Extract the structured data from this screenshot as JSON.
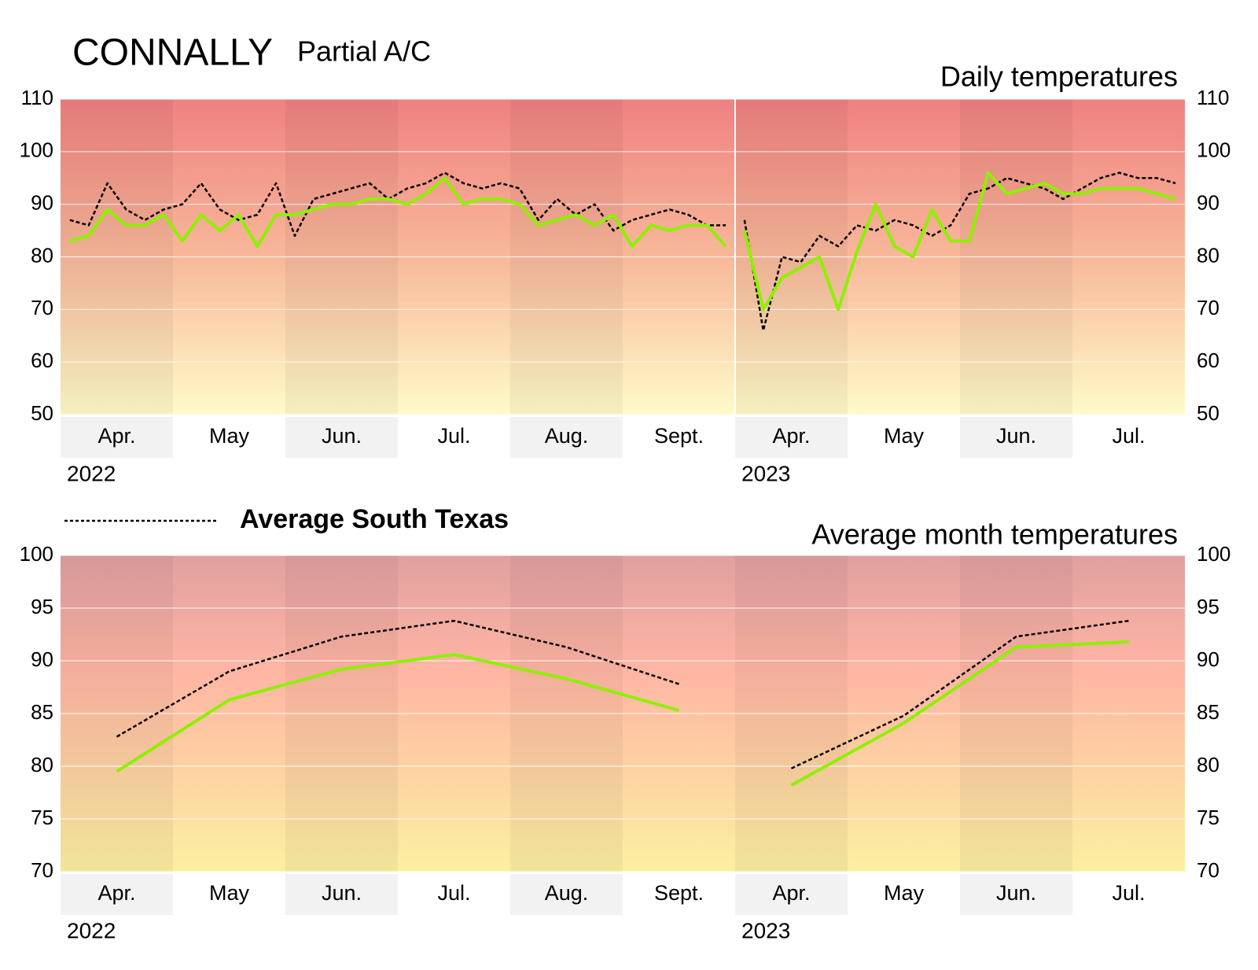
{
  "chart_data": [
    {
      "type": "line",
      "title": "CONNALLY",
      "subtitle": "Partial A/C",
      "heading": "Daily temperatures",
      "ylim": [
        50,
        110
      ],
      "yticks": [
        50,
        60,
        70,
        80,
        90,
        100,
        110
      ],
      "ytick_colors": [
        "#555555",
        "#555555",
        "#555555",
        "#555555",
        "#d0202a",
        "#d0202a",
        "#d0202a"
      ],
      "grid": true,
      "segments": [
        {
          "label": "2022",
          "categories": [
            "Apr.",
            "May",
            "Jun.",
            "Jul.",
            "Aug.",
            "Sept."
          ]
        },
        {
          "label": "2023",
          "categories": [
            "Apr.",
            "May",
            "Jun.",
            "Jul."
          ]
        }
      ],
      "series": [
        {
          "name": "Average South Texas",
          "color": "#000000",
          "dashed": true,
          "values": [
            [
              87,
              86,
              94,
              89,
              87,
              89,
              90,
              94,
              89,
              87,
              88,
              94,
              84,
              91,
              92,
              93,
              94,
              91,
              93,
              94,
              96,
              94,
              93,
              94,
              93,
              87,
              91,
              88,
              90,
              85,
              87,
              88,
              89,
              88,
              86,
              86
            ],
            [
              87,
              66,
              80,
              79,
              84,
              82,
              86,
              85,
              87,
              86,
              84,
              86,
              92,
              93,
              95,
              94,
              93,
              91,
              93,
              95,
              96,
              95,
              95,
              94
            ]
          ]
        },
        {
          "color": "#8ef000",
          "dashed": false,
          "values": [
            [
              83,
              84,
              89,
              86,
              86,
              88,
              83,
              88,
              85,
              88,
              82,
              88,
              88,
              89,
              90,
              90,
              91,
              91,
              90,
              92,
              95,
              90,
              91,
              91,
              90,
              86,
              87,
              88,
              86,
              88,
              82,
              86,
              85,
              86,
              86,
              82
            ],
            [
              85,
              70,
              76,
              78,
              80,
              70,
              81,
              90,
              82,
              80,
              89,
              83,
              83,
              96,
              92,
              93,
              94,
              92,
              92,
              93,
              93,
              93,
              92,
              91
            ]
          ]
        }
      ]
    },
    {
      "type": "line",
      "heading": "Average month temperatures",
      "ylim": [
        70,
        100
      ],
      "yticks": [
        70,
        75,
        80,
        85,
        90,
        95,
        100
      ],
      "ytick_colors": [
        "#555555",
        "#555555",
        "#555555",
        "#d0202a",
        "#d0202a",
        "#d0202a",
        "#d0202a"
      ],
      "grid": true,
      "segments": [
        {
          "label": "2022",
          "categories": [
            "Apr.",
            "May",
            "Jun.",
            "Jul.",
            "Aug.",
            "Sept."
          ]
        },
        {
          "label": "2023",
          "categories": [
            "Apr.",
            "May",
            "Jun.",
            "Jul."
          ]
        }
      ],
      "series": [
        {
          "color": "#000000",
          "dashed": true,
          "values": [
            [
              82.8,
              89,
              92.3,
              93.8,
              91.3,
              87.8
            ],
            [
              79.8,
              84.8,
              92.3,
              93.8
            ]
          ]
        },
        {
          "color": "#8ef000",
          "dashed": false,
          "values": [
            [
              79.5,
              86.3,
              89.2,
              90.6,
              88.3,
              85.3
            ],
            [
              78.2,
              84.1,
              91.3,
              91.8
            ]
          ]
        }
      ]
    }
  ]
}
